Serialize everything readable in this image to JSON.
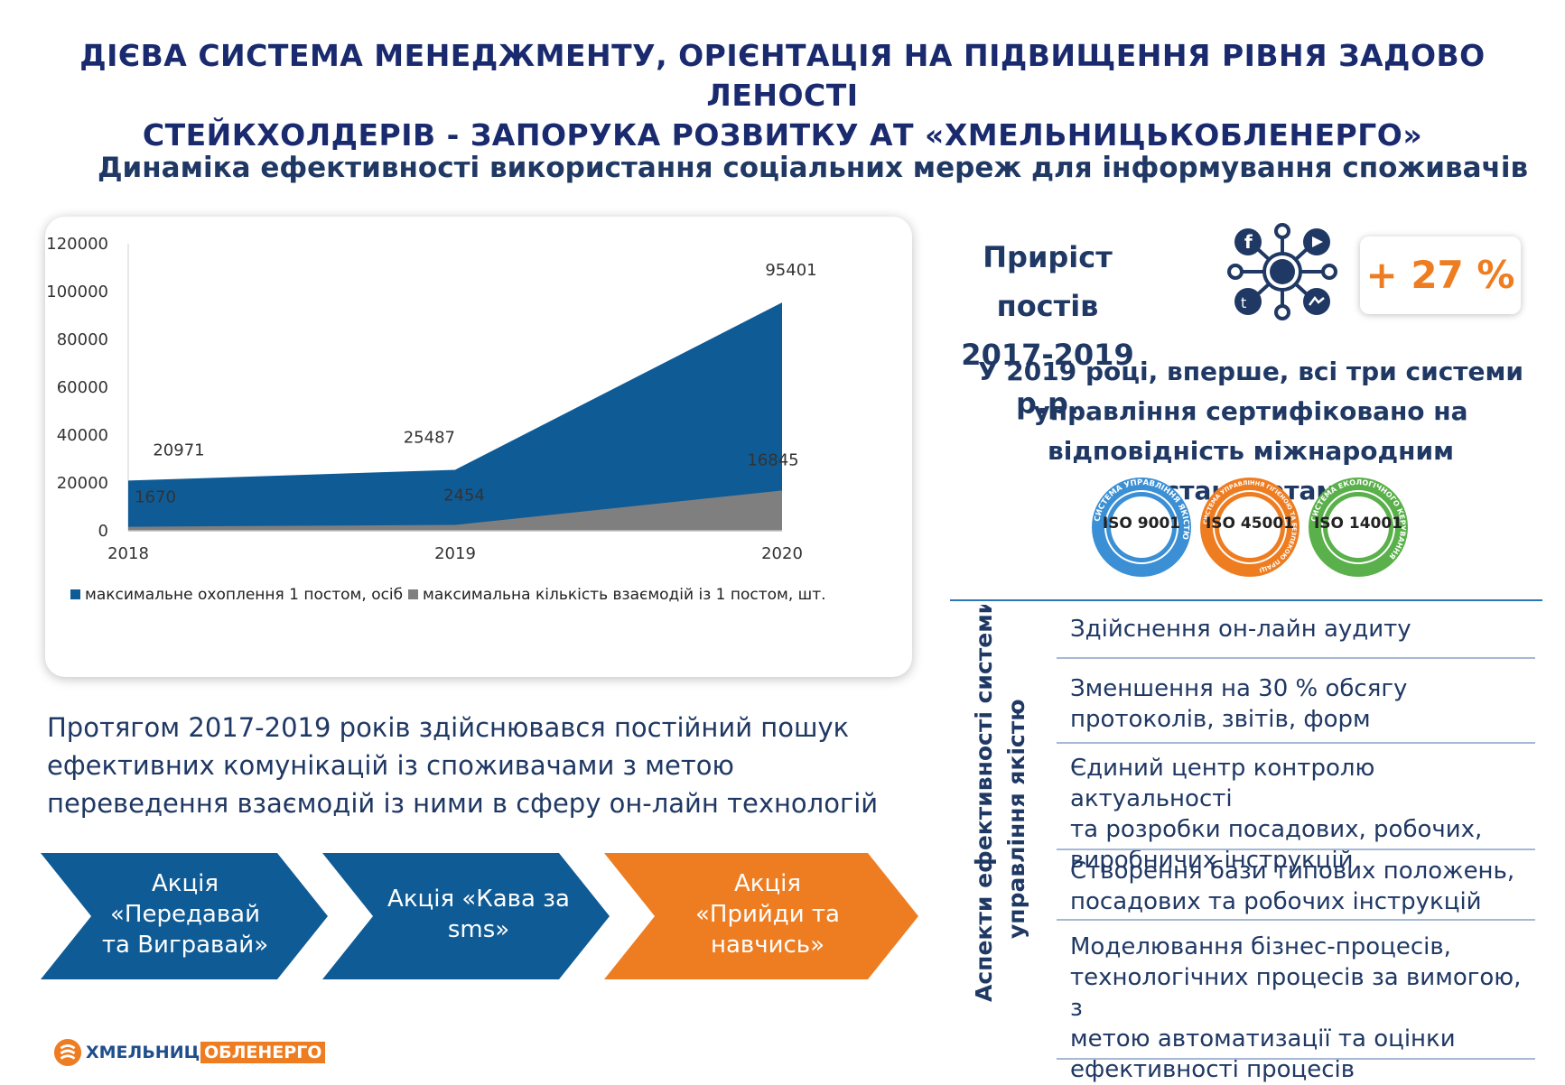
{
  "header": {
    "title_line1": "ДІЄВА СИСТЕМА МЕНЕДЖМЕНТУ, ОРІЄНТАЦІЯ НА ПІДВИЩЕННЯ РІВНЯ ЗАДОВО ЛЕНОСТІ",
    "title_line2": "СТЕЙКХОЛДЕРІВ  - ЗАПОРУКА РОЗВИТКУ АТ «ХМЕЛЬНИЦЬКОБЛЕНЕРГО»",
    "subtitle": "Динаміка ефективності використання соціальних мереж для інформування споживачів"
  },
  "chart_data": {
    "type": "area",
    "x": [
      "2018",
      "2019",
      "2020"
    ],
    "ylim": [
      0,
      120000
    ],
    "yticks": [
      "0",
      "20000",
      "40000",
      "60000",
      "80000",
      "100000",
      "120000"
    ],
    "series": [
      {
        "name": "максимальне охоплення 1 постом, осіб",
        "values": [
          20971,
          25487,
          95401
        ],
        "color": "#0f5b96"
      },
      {
        "name": "максимальна кількість взаємодій із 1 постом, шт.",
        "values": [
          1670,
          2454,
          16845
        ],
        "color": "#7f7f7f"
      }
    ],
    "legend": "bottom",
    "grid": false
  },
  "main_text": {
    "para_line1": "Протягом 2017-2019 років здійснювався постійний пошук",
    "para_line2": "ефективних комунікацій із споживачами з метою",
    "para_line3": "переведення взаємодій із ними в сферу он-лайн технологій"
  },
  "campaigns": [
    {
      "line1": "Акція",
      "line2": "«Передавай",
      "line3": "та Вигравай»",
      "color": "#0f5b96"
    },
    {
      "line1": "Акція «Кава за",
      "line2": "sms»",
      "line3": "",
      "color": "#0f5b96"
    },
    {
      "line1": "Акція",
      "line2": "«Прийди та",
      "line3": "навчись»",
      "color": "#ee7d22"
    }
  ],
  "growth": {
    "label_line1": "Приріст постів",
    "label_line2": "2017-2019 р.р.",
    "value": "+ 27 %",
    "icon": "social-network-icon"
  },
  "certification": {
    "line1": "У 2019 році, вперше, всі три системи",
    "line2": "управління сертифіковано на",
    "line3": "відповідність міжнародним стандартам",
    "badges": [
      {
        "label": "ISO 9001",
        "ring_text": "СИСТЕМА УПРАВЛІННЯ ЯКІСТЮ",
        "color": "#3b8fd4"
      },
      {
        "label": "ISO 45001",
        "ring_text": "СИСТЕМА УПРАВЛІННЯ ГІГІЄНОЮ ТА БЕЗПЕКОЮ ПРАЦІ",
        "color": "#ee7d22"
      },
      {
        "label": "ISO 14001",
        "ring_text": "СИСТЕМА ЕКОЛОГІЧНОГО КЕРУВАННЯ",
        "color": "#5ab04a"
      }
    ]
  },
  "aspects": {
    "heading_line1": "Аспекти ефективності системи",
    "heading_line2": "управління якістю",
    "items": [
      {
        "l1": "Здійснення он-лайн аудиту",
        "l2": "",
        "l3": "",
        "l4": ""
      },
      {
        "l1": "Зменшення на 30 % обсягу",
        "l2": "протоколів, звітів, форм",
        "l3": "",
        "l4": ""
      },
      {
        "l1": "Єдиний центр контролю актуальності",
        "l2": "та розробки посадових, робочих,",
        "l3": "виробничих інструкцій",
        "l4": ""
      },
      {
        "l1": "Створення бази типових положень,",
        "l2": "посадових та робочих інструкцій",
        "l3": "",
        "l4": ""
      },
      {
        "l1": "Моделювання бізнес-процесів,",
        "l2": "технологічних процесів за вимогою, з",
        "l3": "метою автоматизації та оцінки",
        "l4": "ефективності процесів"
      }
    ]
  },
  "logo": {
    "part1": "ХМЕЛЬНИЦЬК",
    "part2": "ОБЛЕНЕРГО"
  }
}
